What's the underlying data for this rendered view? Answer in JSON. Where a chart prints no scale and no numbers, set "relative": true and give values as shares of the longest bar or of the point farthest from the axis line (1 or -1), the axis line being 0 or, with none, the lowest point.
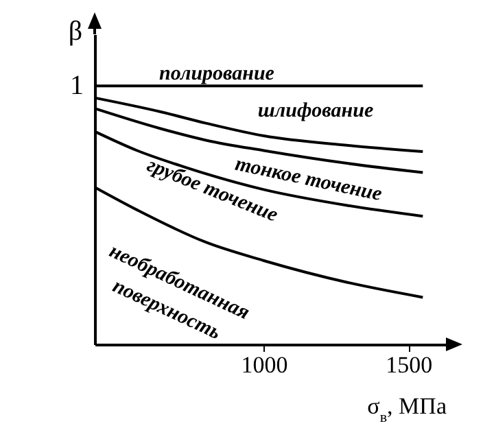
{
  "chart_data": {
    "type": "line",
    "relative": true,
    "xlabel": "σ$_{в}$, МПа",
    "ylabel": "β",
    "xlim": [
      415,
      1630
    ],
    "xticks": [
      1000,
      1500
    ],
    "annotations": [
      "1"
    ],
    "series": [
      {
        "name": "полирование",
        "color": "#000000",
        "x": [
          415,
          1550
        ],
        "values": [
          1,
          1
        ]
      },
      {
        "name": "шлифование",
        "color": "#000000",
        "x": [
          415,
          643,
          800,
          1000,
          1292,
          1550
        ],
        "values": [
          0.954,
          0.9,
          0.856,
          0.807,
          0.77,
          0.746
        ]
      },
      {
        "name": "тонкое точение",
        "color": "#000000",
        "x": [
          415,
          643,
          800,
          1000,
          1292,
          1550
        ],
        "values": [
          0.913,
          0.835,
          0.79,
          0.75,
          0.7,
          0.665
        ]
      },
      {
        "name": "грубое точение",
        "color": "#000000",
        "x": [
          415,
          562,
          721,
          1000,
          1292,
          1550
        ],
        "values": [
          0.824,
          0.75,
          0.688,
          0.599,
          0.537,
          0.496
        ]
      },
      {
        "name": "необработанная\nповерхность",
        "color": "#000000",
        "x": [
          415,
          562,
          800,
          1000,
          1292,
          1550
        ],
        "values": [
          0.608,
          0.52,
          0.395,
          0.324,
          0.239,
          0.182
        ]
      }
    ]
  }
}
